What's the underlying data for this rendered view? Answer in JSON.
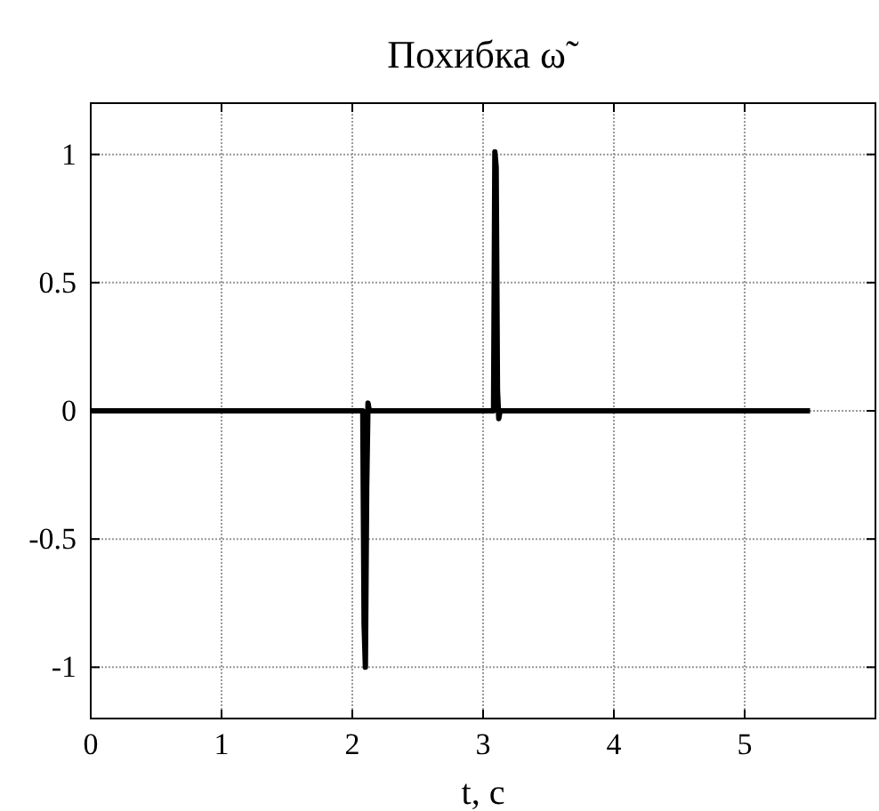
{
  "chart_data": {
    "type": "line",
    "title": "Похибка ω˜",
    "xlabel": "t, c",
    "x": [
      0,
      2.08,
      2.09,
      2.1,
      2.11,
      2.12,
      2.13,
      3.08,
      3.09,
      3.1,
      3.11,
      3.12,
      3.13,
      5.5
    ],
    "series": [
      {
        "color": "#000000",
        "values": [
          0,
          0,
          -0.83,
          -1.0,
          -0.3,
          0.03,
          0,
          0,
          1.01,
          0.95,
          0.08,
          -0.03,
          0,
          0
        ]
      }
    ],
    "xlim": [
      0,
      6
    ],
    "xticks": [
      0,
      1,
      2,
      3,
      4,
      5
    ],
    "ylim": [
      -1.2,
      1.2
    ],
    "yticks": [
      -1,
      -0.5,
      0,
      0.5,
      1
    ],
    "grid": true,
    "line_style": "solid",
    "marker": "none"
  }
}
